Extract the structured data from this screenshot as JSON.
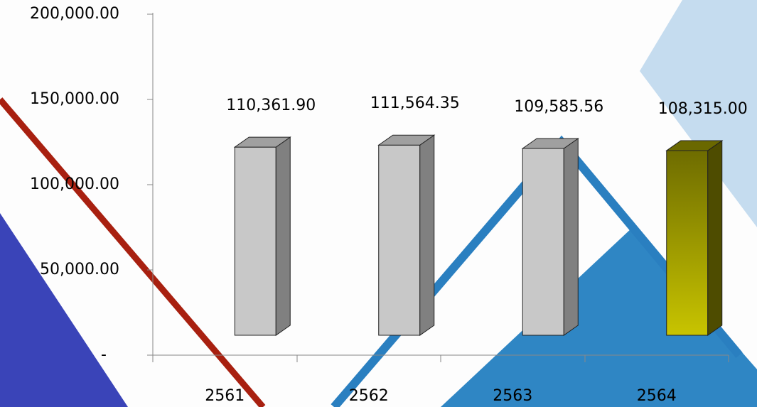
{
  "chart_data": {
    "type": "bar3d",
    "categories": [
      "2561",
      "2562",
      "2563",
      "2564"
    ],
    "values": [
      110361.9,
      111564.35,
      109585.56,
      108315.0
    ],
    "value_labels": [
      "110,361.90",
      "111,564.35",
      "109,585.56",
      "108,315.00"
    ],
    "colors": [
      "#c8c8c8",
      "#c8c8c8",
      "#c8c8c8",
      "#b8b400"
    ],
    "ylim": [
      0,
      200000
    ],
    "yticks": [
      {
        "value": 0,
        "label": "-"
      },
      {
        "value": 50000,
        "label": "50,000.00"
      },
      {
        "value": 100000,
        "label": "100,000.00"
      },
      {
        "value": 150000,
        "label": "150,000.00"
      },
      {
        "value": 200000,
        "label": "200,000.00"
      }
    ]
  }
}
